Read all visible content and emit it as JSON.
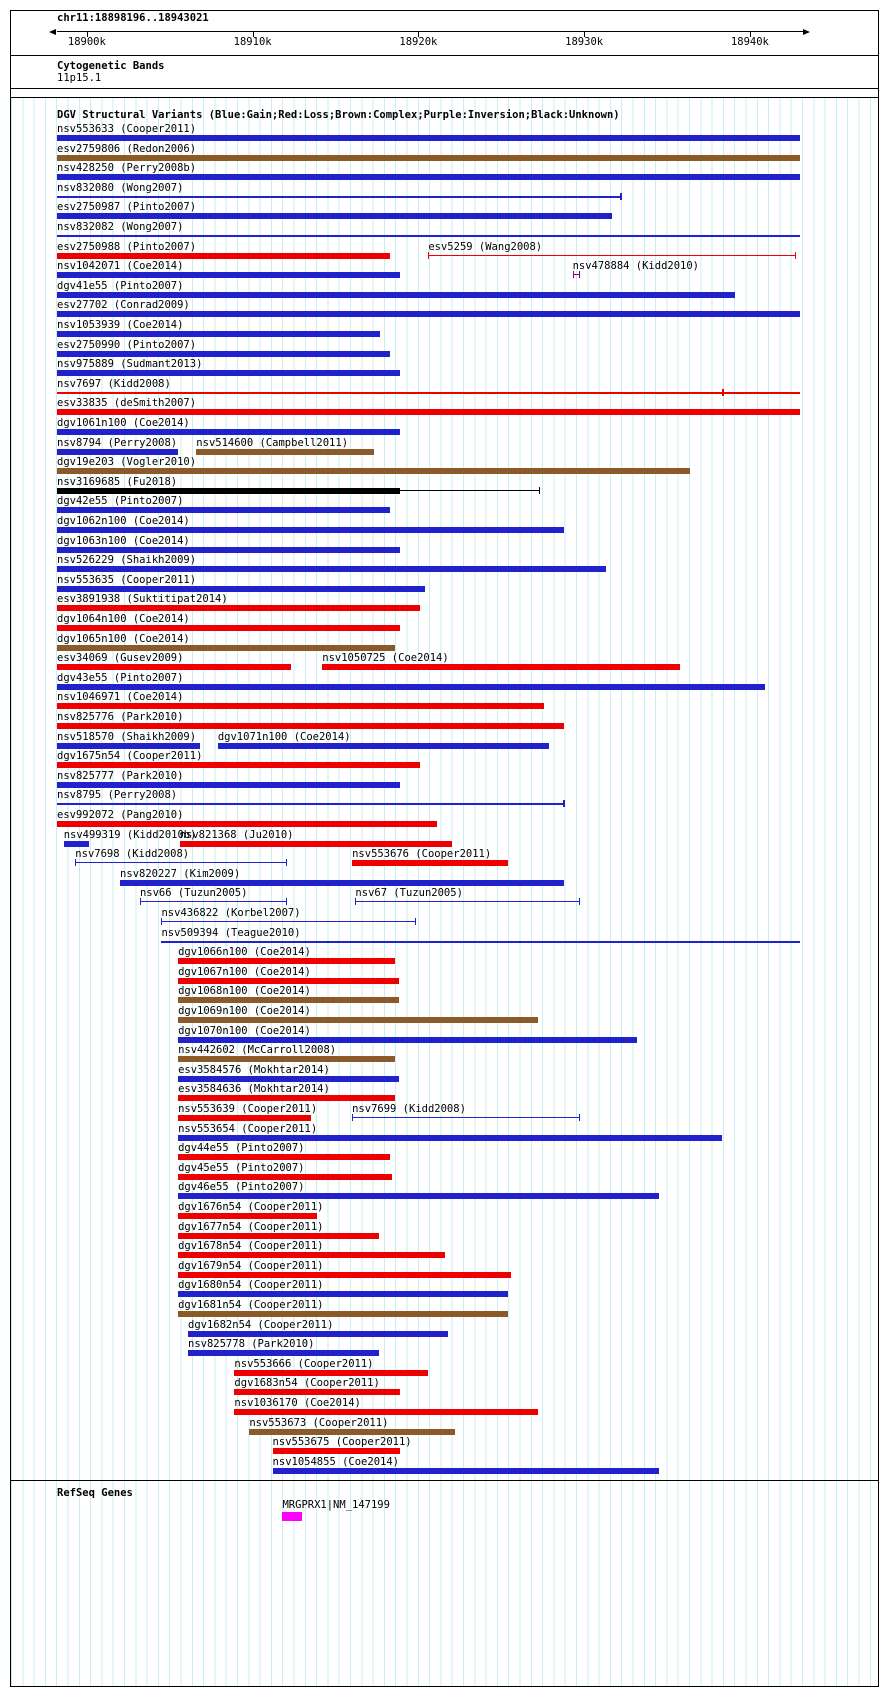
{
  "region": {
    "chrom_label": "chr11:18898196..18943021",
    "start": 18898196,
    "end": 18943021
  },
  "ruler": {
    "major_ticks": [
      {
        "bp": 18900000,
        "label": "18900k"
      },
      {
        "bp": 18910000,
        "label": "18910k"
      },
      {
        "bp": 18920000,
        "label": "18920k"
      },
      {
        "bp": 18930000,
        "label": "18930k"
      },
      {
        "bp": 18940000,
        "label": "18940k"
      }
    ]
  },
  "sections": {
    "cytoband": {
      "title": "Cytogenetic Bands",
      "band": "11p15.1"
    },
    "dgv": {
      "title": "DGV Structural Variants (Blue:Gain;Red:Loss;Brown:Complex;Purple:Inversion;Black:Unknown)"
    },
    "refseq": {
      "title": "RefSeq Genes"
    }
  },
  "colors": {
    "blue": "#2222cc",
    "red": "#ee0000",
    "brown": "#8a5a28",
    "black": "#000000",
    "purple": "#800080",
    "magenta": "#ff00ff",
    "grid": "#c8edf2",
    "text": "#000000"
  },
  "chart_data": {
    "type": "genome-track",
    "color_legend": {
      "blue": "Gain",
      "red": "Loss",
      "brown": "Complex",
      "purple": "Inversion",
      "black": "Unknown"
    },
    "rows": [
      [
        {
          "id": "nsv553633",
          "study": "Cooper2011",
          "c": "blue",
          "g": "box",
          "s": 18898196,
          "e": 18943021
        }
      ],
      [
        {
          "id": "esv2759806",
          "study": "Redon2006",
          "c": "brown",
          "g": "box",
          "s": 18898196,
          "e": 18943021
        }
      ],
      [
        {
          "id": "nsv428250",
          "study": "Perry2008b",
          "c": "blue",
          "g": "box",
          "s": 18898196,
          "e": 18943021
        }
      ],
      [
        {
          "id": "nsv832080",
          "study": "Wong2007",
          "c": "blue",
          "g": "line-endtick",
          "s": 18898196,
          "e": 18932200
        }
      ],
      [
        {
          "id": "esv2750987",
          "study": "Pinto2007",
          "c": "blue",
          "g": "box",
          "s": 18898196,
          "e": 18931700
        }
      ],
      [
        {
          "id": "nsv832082",
          "study": "Wong2007",
          "c": "blue",
          "g": "line",
          "s": 18898196,
          "e": 18943021
        }
      ],
      [
        {
          "id": "esv2750988",
          "study": "Pinto2007",
          "c": "red",
          "g": "box",
          "s": 18898196,
          "e": 18918300
        },
        {
          "id": "esv5259",
          "study": "Wang2008",
          "c": "red",
          "g": "bracket",
          "s": 18920600,
          "e": 18942700
        }
      ],
      [
        {
          "id": "nsv1042071",
          "study": "Coe2014",
          "c": "blue",
          "g": "box",
          "s": 18898196,
          "e": 18918900
        },
        {
          "id": "nsv478884",
          "study": "Kidd2010",
          "c": "purple",
          "g": "bracket",
          "s": 18929300,
          "e": 18929700
        }
      ],
      [
        {
          "id": "dgv41e55",
          "study": "Pinto2007",
          "c": "blue",
          "g": "box",
          "s": 18898196,
          "e": 18939100
        }
      ],
      [
        {
          "id": "esv27702",
          "study": "Conrad2009",
          "c": "blue",
          "g": "box",
          "s": 18898196,
          "e": 18943021
        }
      ],
      [
        {
          "id": "nsv1053939",
          "study": "Coe2014",
          "c": "blue",
          "g": "box",
          "s": 18898196,
          "e": 18917700
        }
      ],
      [
        {
          "id": "esv2750990",
          "study": "Pinto2007",
          "c": "blue",
          "g": "box",
          "s": 18898196,
          "e": 18918300
        }
      ],
      [
        {
          "id": "nsv975889",
          "study": "Sudmant2013",
          "c": "blue",
          "g": "box",
          "s": 18898196,
          "e": 18918900
        }
      ],
      [
        {
          "id": "nsv7697",
          "study": "Kidd2008",
          "c": "red",
          "g": "line-tick",
          "s": 18898196,
          "e": 18943021,
          "t": 18938300
        }
      ],
      [
        {
          "id": "esv33835",
          "study": "deSmith2007",
          "c": "red",
          "g": "box",
          "s": 18898196,
          "e": 18943021
        }
      ],
      [
        {
          "id": "dgv1061n100",
          "study": "Coe2014",
          "c": "blue",
          "g": "box",
          "s": 18898196,
          "e": 18918900
        }
      ],
      [
        {
          "id": "nsv8794",
          "study": "Perry2008",
          "c": "blue",
          "g": "box",
          "s": 18898196,
          "e": 18905500
        },
        {
          "id": "nsv514600",
          "study": "Campbell2011",
          "c": "brown",
          "g": "box",
          "s": 18906600,
          "e": 18917300
        }
      ],
      [
        {
          "id": "dgv19e203",
          "study": "Vogler2010",
          "c": "brown",
          "g": "box",
          "s": 18898196,
          "e": 18936400
        }
      ],
      [
        {
          "id": "nsv3169685",
          "study": "Fu2018",
          "c": "black",
          "g": "box-ext",
          "s": 18898196,
          "e": 18918900,
          "t": 18927300
        }
      ],
      [
        {
          "id": "dgv42e55",
          "study": "Pinto2007",
          "c": "blue",
          "g": "box",
          "s": 18898196,
          "e": 18918300
        }
      ],
      [
        {
          "id": "dgv1062n100",
          "study": "Coe2014",
          "c": "blue",
          "g": "box",
          "s": 18898196,
          "e": 18928800
        }
      ],
      [
        {
          "id": "dgv1063n100",
          "study": "Coe2014",
          "c": "blue",
          "g": "box",
          "s": 18898196,
          "e": 18918900
        }
      ],
      [
        {
          "id": "nsv526229",
          "study": "Shaikh2009",
          "c": "blue",
          "g": "box",
          "s": 18898196,
          "e": 18931300
        }
      ],
      [
        {
          "id": "nsv553635",
          "study": "Cooper2011",
          "c": "blue",
          "g": "box",
          "s": 18898196,
          "e": 18920400
        }
      ],
      [
        {
          "id": "esv3891938",
          "study": "Suktitipat2014",
          "c": "red",
          "g": "box",
          "s": 18898196,
          "e": 18920100
        }
      ],
      [
        {
          "id": "dgv1064n100",
          "study": "Coe2014",
          "c": "red",
          "g": "box",
          "s": 18898196,
          "e": 18918900
        }
      ],
      [
        {
          "id": "dgv1065n100",
          "study": "Coe2014",
          "c": "brown",
          "g": "box",
          "s": 18898196,
          "e": 18918600
        }
      ],
      [
        {
          "id": "esv34069",
          "study": "Gusev2009",
          "c": "red",
          "g": "box",
          "s": 18898196,
          "e": 18912300
        },
        {
          "id": "nsv1050725",
          "study": "Coe2014",
          "c": "red",
          "g": "box",
          "s": 18914200,
          "e": 18935800
        }
      ],
      [
        {
          "id": "dgv43e55",
          "study": "Pinto2007",
          "c": "blue",
          "g": "box",
          "s": 18898196,
          "e": 18940900
        }
      ],
      [
        {
          "id": "nsv1046971",
          "study": "Coe2014",
          "c": "red",
          "g": "box",
          "s": 18898196,
          "e": 18927600
        }
      ],
      [
        {
          "id": "nsv825776",
          "study": "Park2010",
          "c": "red",
          "g": "box",
          "s": 18898196,
          "e": 18928800
        }
      ],
      [
        {
          "id": "nsv518570",
          "study": "Shaikh2009",
          "c": "blue",
          "g": "box",
          "s": 18898196,
          "e": 18906800
        },
        {
          "id": "dgv1071n100",
          "study": "Coe2014",
          "c": "blue",
          "g": "box",
          "s": 18907900,
          "e": 18927900
        }
      ],
      [
        {
          "id": "dgv1675n54",
          "study": "Cooper2011",
          "c": "red",
          "g": "box",
          "s": 18898196,
          "e": 18920100
        }
      ],
      [
        {
          "id": "nsv825777",
          "study": "Park2010",
          "c": "blue",
          "g": "box",
          "s": 18898196,
          "e": 18918900
        }
      ],
      [
        {
          "id": "nsv8795",
          "study": "Perry2008",
          "c": "blue",
          "g": "line-endtick",
          "s": 18898196,
          "e": 18928800
        }
      ],
      [
        {
          "id": "esv992072",
          "study": "Pang2010",
          "c": "red",
          "g": "box",
          "s": 18898196,
          "e": 18921100
        }
      ],
      [
        {
          "id": "nsv499319",
          "study": "Kidd2010b",
          "c": "blue",
          "g": "box",
          "s": 18898600,
          "e": 18900100
        },
        {
          "id": "nsv821368",
          "study": "Ju2010",
          "c": "red",
          "g": "box",
          "s": 18905600,
          "e": 18922000
        }
      ],
      [
        {
          "id": "nsv7698",
          "study": "Kidd2008",
          "c": "blue",
          "g": "bracket",
          "s": 18899300,
          "e": 18912000
        },
        {
          "id": "nsv553676",
          "study": "Cooper2011",
          "c": "red",
          "g": "box",
          "s": 18916000,
          "e": 18925400
        }
      ],
      [
        {
          "id": "nsv820227",
          "study": "Kim2009",
          "c": "blue",
          "g": "box",
          "s": 18902000,
          "e": 18928800
        }
      ],
      [
        {
          "id": "nsv66",
          "study": "Tuzun2005",
          "c": "blue",
          "g": "bracket",
          "s": 18903200,
          "e": 18912000
        },
        {
          "id": "nsv67",
          "study": "Tuzun2005",
          "c": "blue",
          "g": "bracket",
          "s": 18916200,
          "e": 18929700
        }
      ],
      [
        {
          "id": "nsv436822",
          "study": "Korbel2007",
          "c": "blue",
          "g": "bracket",
          "s": 18904500,
          "e": 18919800
        }
      ],
      [
        {
          "id": "nsv509394",
          "study": "Teague2010",
          "c": "blue",
          "g": "line",
          "s": 18904500,
          "e": 18943021
        }
      ],
      [
        {
          "id": "dgv1066n100",
          "study": "Coe2014",
          "c": "red",
          "g": "box",
          "s": 18905500,
          "e": 18918600
        }
      ],
      [
        {
          "id": "dgv1067n100",
          "study": "Coe2014",
          "c": "red",
          "g": "box",
          "s": 18905500,
          "e": 18918800
        }
      ],
      [
        {
          "id": "dgv1068n100",
          "study": "Coe2014",
          "c": "brown",
          "g": "box",
          "s": 18905500,
          "e": 18918800
        }
      ],
      [
        {
          "id": "dgv1069n100",
          "study": "Coe2014",
          "c": "brown",
          "g": "box",
          "s": 18905500,
          "e": 18927200
        }
      ],
      [
        {
          "id": "dgv1070n100",
          "study": "Coe2014",
          "c": "blue",
          "g": "box",
          "s": 18905500,
          "e": 18933200
        }
      ],
      [
        {
          "id": "nsv442602",
          "study": "McCarroll2008",
          "c": "brown",
          "g": "box",
          "s": 18905500,
          "e": 18918600
        }
      ],
      [
        {
          "id": "esv3584576",
          "study": "Mokhtar2014",
          "c": "blue",
          "g": "box",
          "s": 18905500,
          "e": 18918800
        }
      ],
      [
        {
          "id": "esv3584636",
          "study": "Mokhtar2014",
          "c": "red",
          "g": "box",
          "s": 18905500,
          "e": 18918600
        }
      ],
      [
        {
          "id": "nsv553639",
          "study": "Cooper2011",
          "c": "red",
          "g": "box",
          "s": 18905500,
          "e": 18913500
        },
        {
          "id": "nsv7699",
          "study": "Kidd2008",
          "c": "blue",
          "g": "bracket",
          "s": 18916000,
          "e": 18929700
        }
      ],
      [
        {
          "id": "nsv553654",
          "study": "Cooper2011",
          "c": "blue",
          "g": "box",
          "s": 18905500,
          "e": 18938300
        }
      ],
      [
        {
          "id": "dgv44e55",
          "study": "Pinto2007",
          "c": "red",
          "g": "box",
          "s": 18905500,
          "e": 18918300
        }
      ],
      [
        {
          "id": "dgv45e55",
          "study": "Pinto2007",
          "c": "red",
          "g": "box",
          "s": 18905500,
          "e": 18918400
        }
      ],
      [
        {
          "id": "dgv46e55",
          "study": "Pinto2007",
          "c": "blue",
          "g": "box",
          "s": 18905500,
          "e": 18934500
        }
      ],
      [
        {
          "id": "dgv1676n54",
          "study": "Cooper2011",
          "c": "red",
          "g": "box",
          "s": 18905500,
          "e": 18913900
        }
      ],
      [
        {
          "id": "dgv1677n54",
          "study": "Cooper2011",
          "c": "red",
          "g": "box",
          "s": 18905500,
          "e": 18917600
        }
      ],
      [
        {
          "id": "dgv1678n54",
          "study": "Cooper2011",
          "c": "red",
          "g": "box",
          "s": 18905500,
          "e": 18921600
        }
      ],
      [
        {
          "id": "dgv1679n54",
          "study": "Cooper2011",
          "c": "red",
          "g": "box",
          "s": 18905500,
          "e": 18925600
        }
      ],
      [
        {
          "id": "dgv1680n54",
          "study": "Cooper2011",
          "c": "blue",
          "g": "box",
          "s": 18905500,
          "e": 18925400
        }
      ],
      [
        {
          "id": "dgv1681n54",
          "study": "Cooper2011",
          "c": "brown",
          "g": "box",
          "s": 18905500,
          "e": 18925400
        }
      ],
      [
        {
          "id": "dgv1682n54",
          "study": "Cooper2011",
          "c": "blue",
          "g": "box",
          "s": 18906100,
          "e": 18921800
        }
      ],
      [
        {
          "id": "nsv825778",
          "study": "Park2010",
          "c": "blue",
          "g": "box",
          "s": 18906100,
          "e": 18917600
        }
      ],
      [
        {
          "id": "nsv553666",
          "study": "Cooper2011",
          "c": "red",
          "g": "box",
          "s": 18908900,
          "e": 18920600
        }
      ],
      [
        {
          "id": "dgv1683n54",
          "study": "Cooper2011",
          "c": "red",
          "g": "box",
          "s": 18908900,
          "e": 18918900
        }
      ],
      [
        {
          "id": "nsv1036170",
          "study": "Coe2014",
          "c": "red",
          "g": "box",
          "s": 18908900,
          "e": 18927200
        }
      ],
      [
        {
          "id": "nsv553673",
          "study": "Cooper2011",
          "c": "brown",
          "g": "box",
          "s": 18909800,
          "e": 18922200
        }
      ],
      [
        {
          "id": "nsv553675",
          "study": "Cooper2011",
          "c": "red",
          "g": "box",
          "s": 18911200,
          "e": 18918900
        }
      ],
      [
        {
          "id": "nsv1054855",
          "study": "Coe2014",
          "c": "blue",
          "g": "box",
          "s": 18911200,
          "e": 18934500
        }
      ]
    ],
    "gene": {
      "name": "MRGPRX1|NM_147199",
      "s": 18911800,
      "e": 18913000,
      "c": "magenta"
    }
  }
}
